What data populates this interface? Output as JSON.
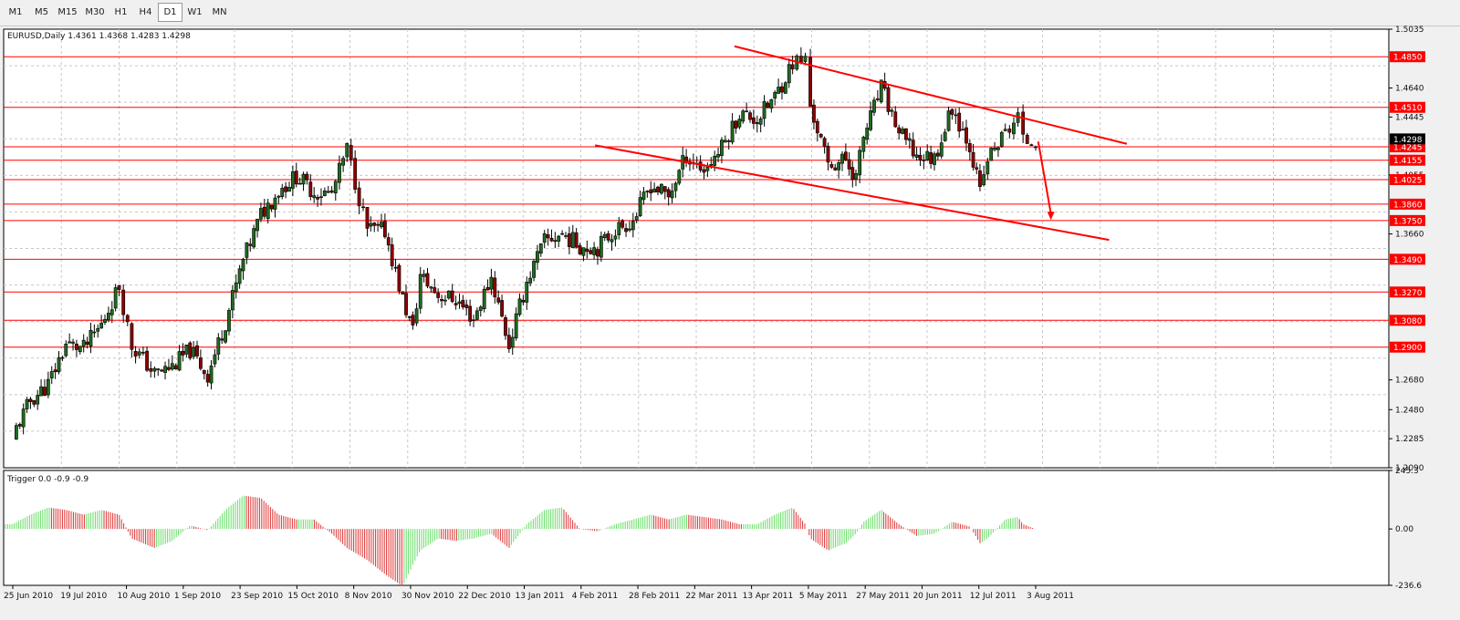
{
  "toolbar": {
    "timeframes": [
      "M1",
      "M5",
      "M15",
      "M30",
      "H1",
      "H4",
      "D1",
      "W1",
      "MN"
    ],
    "active": "D1"
  },
  "colors": {
    "level": "#ff0000",
    "up_candle": "#1f6b1f",
    "down_candle": "#8b0000",
    "hist_pos": "#66dd66",
    "hist_neg": "#dd3333",
    "grid": "#c8c8c8"
  },
  "chart_data": [
    {
      "type": "candlestick",
      "title": "EURUSD,Daily  1.4361 1.4368 1.4283 1.4298",
      "ylim": [
        1.209,
        1.5035
      ],
      "y_tick_labels": [
        "1.5035",
        "1.4640",
        "1.4445",
        "1.4055",
        "1.3660",
        "1.2680",
        "1.2480",
        "1.2285",
        "1.2090"
      ],
      "y_tick_values": [
        1.5035,
        1.464,
        1.4445,
        1.4055,
        1.366,
        1.268,
        1.248,
        1.2285,
        1.209
      ],
      "horizontal_levels": [
        {
          "value": 1.485,
          "label": "1.4850"
        },
        {
          "value": 1.451,
          "label": "1.4510"
        },
        {
          "value": 1.4245,
          "label": "1.4245"
        },
        {
          "value": 1.4155,
          "label": "1.4155"
        },
        {
          "value": 1.4025,
          "label": "1.4025"
        },
        {
          "value": 1.386,
          "label": "1.3860"
        },
        {
          "value": 1.375,
          "label": "1.3750"
        },
        {
          "value": 1.349,
          "label": "1.3490"
        },
        {
          "value": 1.327,
          "label": "1.3270"
        },
        {
          "value": 1.308,
          "label": "1.3080"
        },
        {
          "value": 1.29,
          "label": "1.2900"
        }
      ],
      "current_price": {
        "value": 1.4298,
        "label": "1.4298"
      },
      "trendlines": [
        {
          "from": {
            "date": "2011-04-06",
            "price": 1.492
          },
          "to": {
            "date": "2011-09-08",
            "price": 1.4265
          }
        },
        {
          "from": {
            "date": "2011-02-10",
            "price": 1.4255
          },
          "to": {
            "date": "2011-09-01",
            "price": 1.362
          }
        }
      ],
      "arrow": {
        "from": {
          "date": "2011-08-04",
          "price": 1.428
        },
        "to": {
          "date": "2011-08-09",
          "price": 1.376
        }
      },
      "closes": [
        {
          "date": "2010-06-25",
          "close": 1.231
        },
        {
          "date": "2010-07-02",
          "close": 1.254
        },
        {
          "date": "2010-07-09",
          "close": 1.265
        },
        {
          "date": "2010-07-16",
          "close": 1.292
        },
        {
          "date": "2010-07-23",
          "close": 1.289
        },
        {
          "date": "2010-07-30",
          "close": 1.305
        },
        {
          "date": "2010-08-06",
          "close": 1.331
        },
        {
          "date": "2010-08-11",
          "close": 1.291
        },
        {
          "date": "2010-08-20",
          "close": 1.272
        },
        {
          "date": "2010-08-27",
          "close": 1.277
        },
        {
          "date": "2010-09-03",
          "close": 1.288
        },
        {
          "date": "2010-09-10",
          "close": 1.271
        },
        {
          "date": "2010-09-17",
          "close": 1.307
        },
        {
          "date": "2010-09-24",
          "close": 1.348
        },
        {
          "date": "2010-10-01",
          "close": 1.379
        },
        {
          "date": "2010-10-08",
          "close": 1.395
        },
        {
          "date": "2010-10-15",
          "close": 1.405
        },
        {
          "date": "2010-10-22",
          "close": 1.394
        },
        {
          "date": "2010-10-29",
          "close": 1.393
        },
        {
          "date": "2010-11-04",
          "close": 1.423
        },
        {
          "date": "2010-11-12",
          "close": 1.369
        },
        {
          "date": "2010-11-19",
          "close": 1.368
        },
        {
          "date": "2010-11-26",
          "close": 1.322
        },
        {
          "date": "2010-11-30",
          "close": 1.301
        },
        {
          "date": "2010-12-03",
          "close": 1.338
        },
        {
          "date": "2010-12-10",
          "close": 1.325
        },
        {
          "date": "2010-12-17",
          "close": 1.322
        },
        {
          "date": "2010-12-24",
          "close": 1.309
        },
        {
          "date": "2010-12-31",
          "close": 1.337
        },
        {
          "date": "2011-01-07",
          "close": 1.291
        },
        {
          "date": "2011-01-14",
          "close": 1.334
        },
        {
          "date": "2011-01-21",
          "close": 1.361
        },
        {
          "date": "2011-01-28",
          "close": 1.366
        },
        {
          "date": "2011-02-04",
          "close": 1.358
        },
        {
          "date": "2011-02-11",
          "close": 1.357
        },
        {
          "date": "2011-02-18",
          "close": 1.369
        },
        {
          "date": "2011-02-25",
          "close": 1.375
        },
        {
          "date": "2011-03-04",
          "close": 1.399
        },
        {
          "date": "2011-03-11",
          "close": 1.391
        },
        {
          "date": "2011-03-18",
          "close": 1.419
        },
        {
          "date": "2011-03-25",
          "close": 1.409
        },
        {
          "date": "2011-04-01",
          "close": 1.424
        },
        {
          "date": "2011-04-08",
          "close": 1.447
        },
        {
          "date": "2011-04-15",
          "close": 1.443
        },
        {
          "date": "2011-04-22",
          "close": 1.458
        },
        {
          "date": "2011-04-29",
          "close": 1.481
        },
        {
          "date": "2011-05-04",
          "close": 1.483
        },
        {
          "date": "2011-05-06",
          "close": 1.452
        },
        {
          "date": "2011-05-13",
          "close": 1.412
        },
        {
          "date": "2011-05-20",
          "close": 1.416
        },
        {
          "date": "2011-05-24",
          "close": 1.404
        },
        {
          "date": "2011-05-27",
          "close": 1.431
        },
        {
          "date": "2011-06-03",
          "close": 1.464
        },
        {
          "date": "2011-06-10",
          "close": 1.434
        },
        {
          "date": "2011-06-17",
          "close": 1.418
        },
        {
          "date": "2011-06-24",
          "close": 1.417
        },
        {
          "date": "2011-07-01",
          "close": 1.451
        },
        {
          "date": "2011-07-08",
          "close": 1.426
        },
        {
          "date": "2011-07-12",
          "close": 1.394
        },
        {
          "date": "2011-07-15",
          "close": 1.416
        },
        {
          "date": "2011-07-22",
          "close": 1.434
        },
        {
          "date": "2011-07-27",
          "close": 1.445
        },
        {
          "date": "2011-07-29",
          "close": 1.428
        },
        {
          "date": "2011-08-03",
          "close": 1.4298
        }
      ],
      "x_labels": [
        "25 Jun 2010",
        "19 Jul 2010",
        "10 Aug 2010",
        "1 Sep 2010",
        "23 Sep 2010",
        "15 Oct 2010",
        "8 Nov 2010",
        "30 Nov 2010",
        "22 Dec 2010",
        "13 Jan 2011",
        "4 Feb 2011",
        "28 Feb 2011",
        "22 Mar 2011",
        "13 Apr 2011",
        "5 May 2011",
        "27 May 2011",
        "20 Jun 2011",
        "12 Jul 2011",
        "3 Aug 2011"
      ]
    },
    {
      "type": "histogram",
      "title": "Trigger 0.0 -0.9 -0.9",
      "ylim": [
        -236.6,
        245.3
      ],
      "y_tick_labels": [
        "245.3",
        "0.00",
        "-236.6"
      ],
      "y_tick_values": [
        245.3,
        0,
        -236.6
      ],
      "curve": [
        {
          "date": "2010-06-25",
          "value": 20
        },
        {
          "date": "2010-07-02",
          "value": 60
        },
        {
          "date": "2010-07-09",
          "value": 90
        },
        {
          "date": "2010-07-16",
          "value": 80
        },
        {
          "date": "2010-07-23",
          "value": 60
        },
        {
          "date": "2010-07-30",
          "value": 80
        },
        {
          "date": "2010-08-06",
          "value": 60
        },
        {
          "date": "2010-08-11",
          "value": -40
        },
        {
          "date": "2010-08-20",
          "value": -80
        },
        {
          "date": "2010-08-27",
          "value": -50
        },
        {
          "date": "2010-09-03",
          "value": 15
        },
        {
          "date": "2010-09-10",
          "value": -5
        },
        {
          "date": "2010-09-17",
          "value": 80
        },
        {
          "date": "2010-09-24",
          "value": 140
        },
        {
          "date": "2010-10-01",
          "value": 130
        },
        {
          "date": "2010-10-08",
          "value": 60
        },
        {
          "date": "2010-10-15",
          "value": 40
        },
        {
          "date": "2010-10-22",
          "value": 40
        },
        {
          "date": "2010-10-29",
          "value": -20
        },
        {
          "date": "2010-11-04",
          "value": -80
        },
        {
          "date": "2010-11-12",
          "value": -130
        },
        {
          "date": "2010-11-19",
          "value": -190
        },
        {
          "date": "2010-11-26",
          "value": -240
        },
        {
          "date": "2010-11-30",
          "value": -150
        },
        {
          "date": "2010-12-03",
          "value": -90
        },
        {
          "date": "2010-12-10",
          "value": -40
        },
        {
          "date": "2010-12-17",
          "value": -50
        },
        {
          "date": "2010-12-24",
          "value": -40
        },
        {
          "date": "2010-12-31",
          "value": -20
        },
        {
          "date": "2011-01-07",
          "value": -80
        },
        {
          "date": "2011-01-14",
          "value": 20
        },
        {
          "date": "2011-01-21",
          "value": 80
        },
        {
          "date": "2011-01-28",
          "value": 90
        },
        {
          "date": "2011-02-04",
          "value": 0
        },
        {
          "date": "2011-02-11",
          "value": -10
        },
        {
          "date": "2011-02-18",
          "value": 20
        },
        {
          "date": "2011-02-25",
          "value": 40
        },
        {
          "date": "2011-03-04",
          "value": 60
        },
        {
          "date": "2011-03-11",
          "value": 40
        },
        {
          "date": "2011-03-18",
          "value": 60
        },
        {
          "date": "2011-03-25",
          "value": 50
        },
        {
          "date": "2011-04-01",
          "value": 40
        },
        {
          "date": "2011-04-08",
          "value": 20
        },
        {
          "date": "2011-04-15",
          "value": 20
        },
        {
          "date": "2011-04-22",
          "value": 60
        },
        {
          "date": "2011-04-29",
          "value": 90
        },
        {
          "date": "2011-05-04",
          "value": 20
        },
        {
          "date": "2011-05-06",
          "value": -40
        },
        {
          "date": "2011-05-13",
          "value": -90
        },
        {
          "date": "2011-05-20",
          "value": -60
        },
        {
          "date": "2011-05-24",
          "value": -20
        },
        {
          "date": "2011-05-27",
          "value": 30
        },
        {
          "date": "2011-06-03",
          "value": 80
        },
        {
          "date": "2011-06-10",
          "value": 20
        },
        {
          "date": "2011-06-17",
          "value": -30
        },
        {
          "date": "2011-06-24",
          "value": -20
        },
        {
          "date": "2011-07-01",
          "value": 30
        },
        {
          "date": "2011-07-08",
          "value": 10
        },
        {
          "date": "2011-07-12",
          "value": -60
        },
        {
          "date": "2011-07-15",
          "value": -40
        },
        {
          "date": "2011-07-22",
          "value": 40
        },
        {
          "date": "2011-07-27",
          "value": 50
        },
        {
          "date": "2011-07-29",
          "value": 20
        },
        {
          "date": "2011-08-03",
          "value": -1
        }
      ]
    }
  ]
}
